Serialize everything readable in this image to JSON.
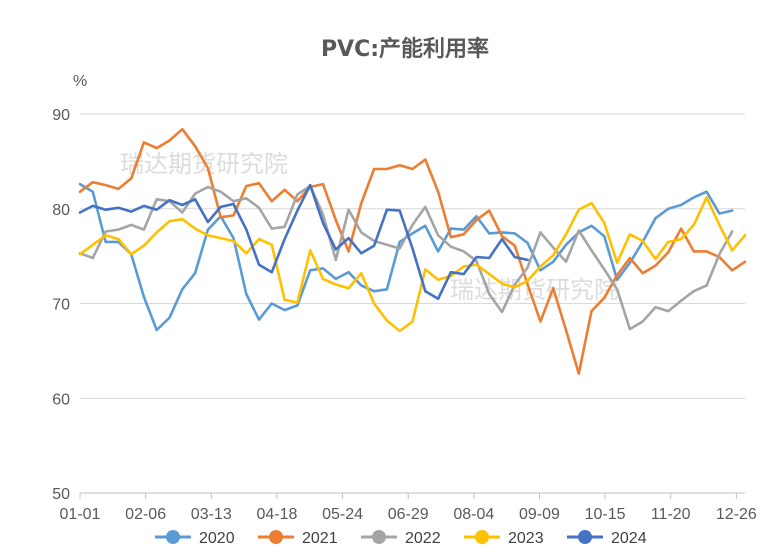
{
  "chart_data": {
    "type": "line",
    "title": "PVC:产能利用率",
    "ylabel": "%",
    "ylim": [
      50,
      90
    ],
    "yticks": [
      "50",
      "60",
      "70",
      "80",
      "90"
    ],
    "x_tick_labels": [
      "01-01",
      "02-06",
      "03-13",
      "04-18",
      "05-24",
      "06-29",
      "08-04",
      "09-09",
      "10-15",
      "11-20",
      "12-26"
    ],
    "watermark": "瑞达期货研究院",
    "grid": true,
    "legend_position": "bottom",
    "series": [
      {
        "name": "2020",
        "color": "#5B9BD5",
        "values": [
          82.6,
          81.8,
          76.5,
          76.5,
          75.2,
          70.7,
          67.2,
          68.5,
          71.5,
          73.2,
          77.8,
          79.2,
          76.9,
          71.0,
          68.3,
          70.0,
          69.3,
          69.8,
          73.5,
          73.7,
          72.6,
          73.3,
          71.9,
          71.3,
          71.5,
          76.5,
          77.4,
          78.2,
          75.5,
          77.9,
          77.8,
          79.2,
          77.4,
          77.5,
          77.4,
          76.4,
          73.5,
          74.4,
          76.2,
          77.5,
          78.2,
          77.1,
          72.5,
          74.3,
          76.5,
          79.0,
          80.0,
          80.4,
          81.2,
          81.8,
          79.5,
          79.8
        ]
      },
      {
        "name": "2021",
        "color": "#ED7D31",
        "values": [
          81.8,
          82.8,
          82.5,
          82.1,
          83.2,
          87.0,
          86.4,
          87.2,
          88.4,
          86.6,
          84.3,
          79.1,
          79.3,
          82.4,
          82.7,
          80.8,
          82.0,
          80.8,
          82.3,
          82.6,
          78.8,
          75.5,
          80.6,
          84.2,
          84.2,
          84.6,
          84.2,
          85.2,
          81.8,
          77.0,
          77.3,
          78.8,
          79.8,
          77.1,
          76.1,
          72.0,
          68.1,
          71.6,
          67.2,
          62.6,
          69.2,
          70.6,
          73.0,
          74.8,
          73.2,
          74.0,
          75.4,
          77.9,
          75.5,
          75.5,
          74.9,
          73.5,
          74.4
        ]
      },
      {
        "name": "2022",
        "color": "#A5A5A5",
        "values": [
          75.3,
          74.8,
          77.6,
          77.8,
          78.3,
          77.8,
          81.0,
          80.8,
          79.6,
          81.6,
          82.3,
          81.8,
          80.8,
          81.1,
          80.1,
          77.9,
          78.1,
          81.5,
          82.4,
          79.4,
          74.6,
          79.9,
          77.5,
          76.6,
          76.2,
          75.8,
          78.3,
          80.2,
          77.2,
          76.0,
          75.5,
          74.5,
          71.0,
          69.1,
          72.0,
          73.8,
          77.5,
          75.9,
          74.4,
          77.7,
          75.6,
          73.6,
          71.5,
          67.3,
          68.1,
          69.6,
          69.2,
          70.3,
          71.3,
          71.9,
          75.2,
          77.6
        ]
      },
      {
        "name": "2023",
        "color": "#FFC000",
        "values": [
          75.2,
          76.2,
          77.2,
          76.8,
          75.2,
          76.1,
          77.5,
          78.7,
          78.9,
          77.9,
          77.2,
          76.9,
          76.6,
          75.3,
          76.8,
          76.2,
          70.4,
          70.1,
          75.6,
          72.6,
          72.0,
          71.6,
          73.2,
          70.0,
          68.2,
          67.1,
          68.1,
          73.6,
          72.5,
          72.9,
          73.9,
          74.1,
          73.1,
          72.1,
          71.7,
          72.4,
          73.9,
          75.1,
          77.3,
          79.9,
          80.6,
          78.5,
          74.3,
          77.3,
          76.6,
          74.7,
          76.5,
          76.8,
          78.3,
          81.2,
          78.3,
          75.6,
          77.2
        ]
      },
      {
        "name": "2024",
        "color": "#4472C4",
        "values": [
          79.6,
          80.3,
          79.9,
          80.1,
          79.7,
          80.3,
          79.9,
          80.9,
          80.4,
          81.0,
          78.6,
          80.2,
          80.5,
          77.8,
          74.1,
          73.3,
          76.8,
          79.8,
          82.5,
          78.5,
          75.7,
          76.9,
          75.3,
          76.1,
          79.9,
          79.8,
          75.8,
          71.3,
          70.5,
          73.3,
          73.1,
          74.9,
          74.8,
          76.8,
          74.9,
          74.6
        ]
      }
    ]
  }
}
